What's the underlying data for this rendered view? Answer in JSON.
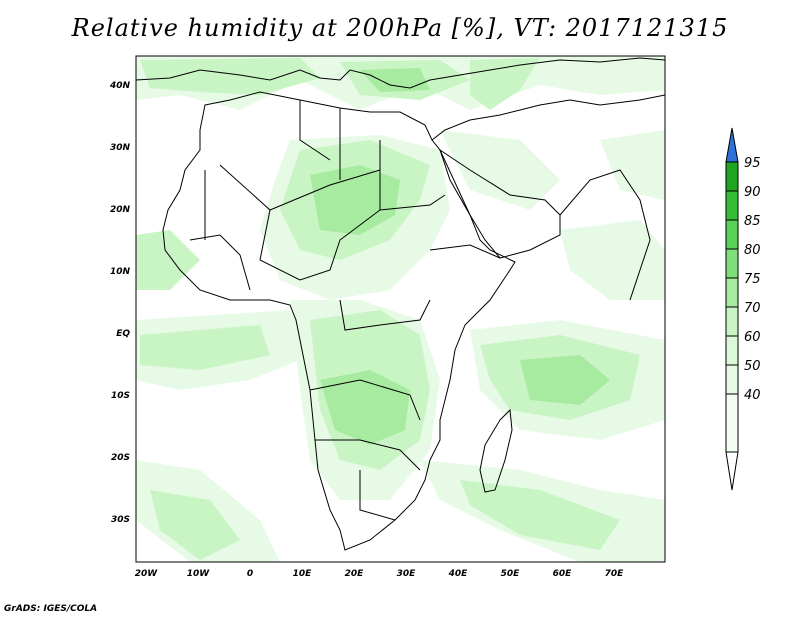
{
  "title": "Relative humidity at 200hPa [%], VT: 2017121315",
  "credit": "GrADS: IGES/COLA",
  "map": {
    "lon_range": [
      -22,
      80
    ],
    "lat_range": [
      -37,
      45
    ],
    "lon_ticks": [
      "20W",
      "10W",
      "0",
      "10E",
      "20E",
      "30E",
      "40E",
      "50E",
      "60E",
      "70E"
    ],
    "lat_ticks": [
      "40N",
      "30N",
      "20N",
      "10N",
      "EQ",
      "10S",
      "20S",
      "30S"
    ],
    "coastline_color": "#000000"
  },
  "colorbar": {
    "levels": [
      "40",
      "50",
      "60",
      "70",
      "75",
      "80",
      "85",
      "90",
      "95"
    ],
    "colors": [
      "#ffffff",
      "#e6fae6",
      "#c8f5c3",
      "#a6eba0",
      "#7fe07a",
      "#58d256",
      "#36bf36",
      "#1fa51f",
      "#2c72d8"
    ],
    "over_color": "#2c72d8",
    "under_color": "#ffffff"
  }
}
